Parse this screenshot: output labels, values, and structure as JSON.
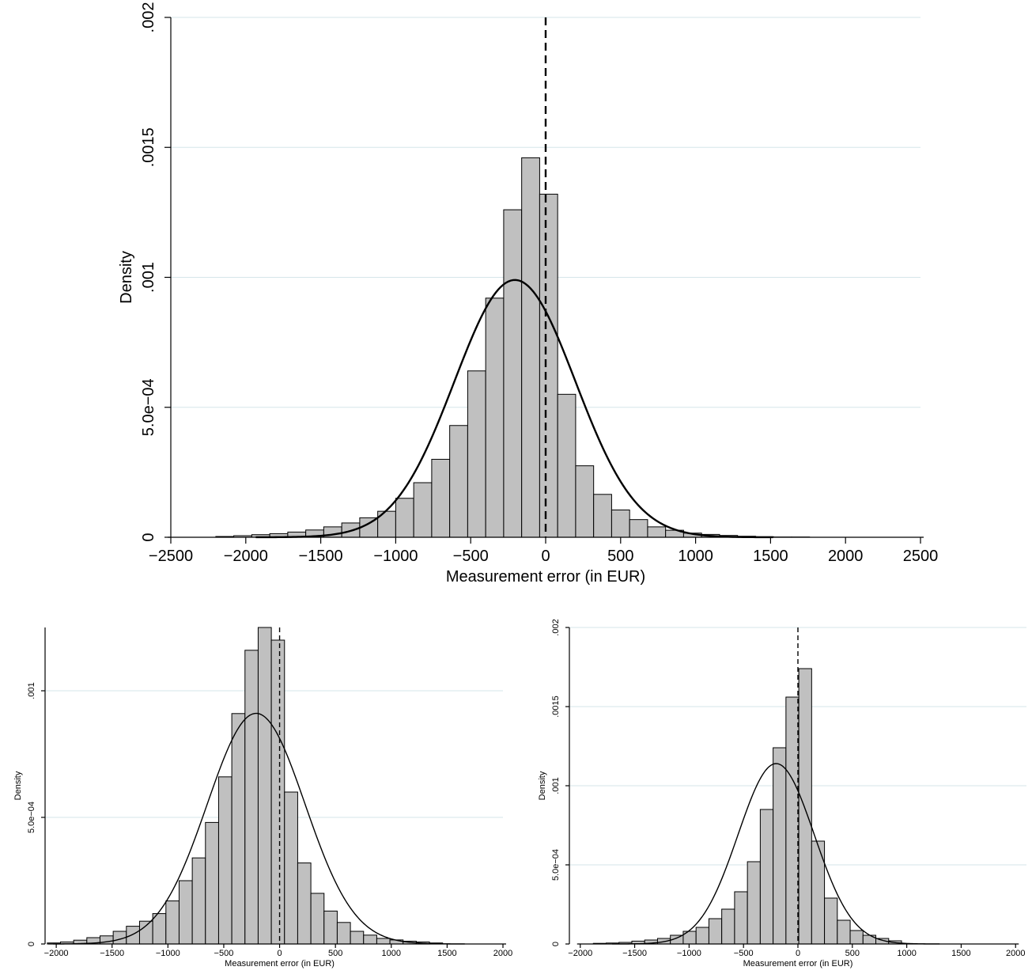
{
  "chart_data": [
    {
      "type": "bar",
      "subtype": "histogram-with-normal-density",
      "xlabel": "Measurement error (in EUR)",
      "ylabel": "Density",
      "xlim": [
        -2500,
        2500
      ],
      "ylim": [
        0,
        0.002
      ],
      "x_ticks": [
        -2500,
        -2000,
        -1500,
        -1000,
        -500,
        0,
        500,
        1000,
        1500,
        2000,
        2500
      ],
      "x_tick_labels": [
        "−2500",
        "−2000",
        "−1500",
        "−1000",
        "−500",
        "0",
        "500",
        "1000",
        "1500",
        "2000",
        "2500"
      ],
      "y_ticks": [
        0,
        0.0005,
        0.001,
        0.0015,
        0.002
      ],
      "y_tick_labels": [
        "0",
        "5.0e−04",
        ".001",
        ".0015",
        ".002"
      ],
      "grid": true,
      "reference_line_x": 0,
      "bin_start": -2200,
      "bin_width": 120,
      "values": [
        3e-06,
        6e-06,
        1e-05,
        1.4e-05,
        2e-05,
        2.8e-05,
        4e-05,
        5.5e-05,
        7.5e-05,
        0.0001,
        0.00015,
        0.00021,
        0.0003,
        0.00043,
        0.00064,
        0.00092,
        0.00126,
        0.00146,
        0.00132,
        0.00055,
        0.000275,
        0.000165,
        0.000105,
        6.8e-05,
        4e-05,
        2.7e-05,
        1.6e-05,
        1.1e-05,
        7e-06,
        4e-06,
        2e-06,
        1e-06,
        1e-06
      ],
      "normal_curve": {
        "mean": -205,
        "sd": 403
      }
    },
    {
      "type": "bar",
      "subtype": "histogram-with-normal-density",
      "xlabel": "Measurement error (in EUR)",
      "ylabel": "Density",
      "xlim": [
        -2100,
        2000
      ],
      "ylim": [
        0,
        0.00125
      ],
      "x_ticks": [
        -2000,
        -1500,
        -1000,
        -500,
        0,
        500,
        1000,
        1500,
        2000
      ],
      "x_tick_labels": [
        "−2000",
        "−1500",
        "−1000",
        "−500",
        "0",
        "500",
        "1000",
        "1500",
        "2000"
      ],
      "y_ticks": [
        0,
        0.0005,
        0.001
      ],
      "y_tick_labels": [
        "0",
        "5.0e−04",
        ".001"
      ],
      "grid": true,
      "reference_line_x": 0,
      "bin_start": -2080,
      "bin_width": 118,
      "values": [
        4e-06,
        8e-06,
        1.5e-05,
        2.5e-05,
        3.2e-05,
        5e-05,
        7e-05,
        9e-05,
        0.00012,
        0.00017,
        0.00025,
        0.00034,
        0.00048,
        0.00066,
        0.00091,
        0.00116,
        0.00125,
        0.0012,
        0.0006,
        0.00032,
        0.0002,
        0.00013,
        8.5e-05,
        5e-05,
        3.5e-05,
        2.2e-05,
        1.6e-05,
        1.1e-05,
        8e-06,
        4e-06
      ],
      "normal_curve": {
        "mean": -210,
        "sd": 438
      }
    },
    {
      "type": "bar",
      "subtype": "histogram-with-normal-density",
      "xlabel": "Measurement error (in EUR)",
      "ylabel": "Density",
      "xlim": [
        -2100,
        2100
      ],
      "ylim": [
        0,
        0.002
      ],
      "x_ticks": [
        -2000,
        -1500,
        -1000,
        -500,
        0,
        500,
        1000,
        1500,
        2000
      ],
      "x_tick_labels": [
        "−2000",
        "−1500",
        "−1000",
        "−500",
        "0",
        "500",
        "1000",
        "1500",
        "2000"
      ],
      "y_ticks": [
        0,
        0.0005,
        0.001,
        0.0015,
        0.002
      ],
      "y_tick_labels": [
        "0",
        "5.0e−04",
        ".001",
        ".0015",
        ".002"
      ],
      "grid": true,
      "reference_line_x": 0,
      "bin_start": -1880,
      "bin_width": 118,
      "values": [
        4e-06,
        6e-06,
        1e-05,
        1.8e-05,
        2.5e-05,
        3.5e-05,
        5.5e-05,
        8e-05,
        0.000105,
        0.00016,
        0.00022,
        0.00033,
        0.00052,
        0.00085,
        0.00124,
        0.00156,
        0.00174,
        0.00065,
        0.00029,
        0.00015,
        8.5e-05,
        5.5e-05,
        3.5e-05,
        2e-05
      ],
      "normal_curve": {
        "mean": -200,
        "sd": 350
      }
    }
  ]
}
